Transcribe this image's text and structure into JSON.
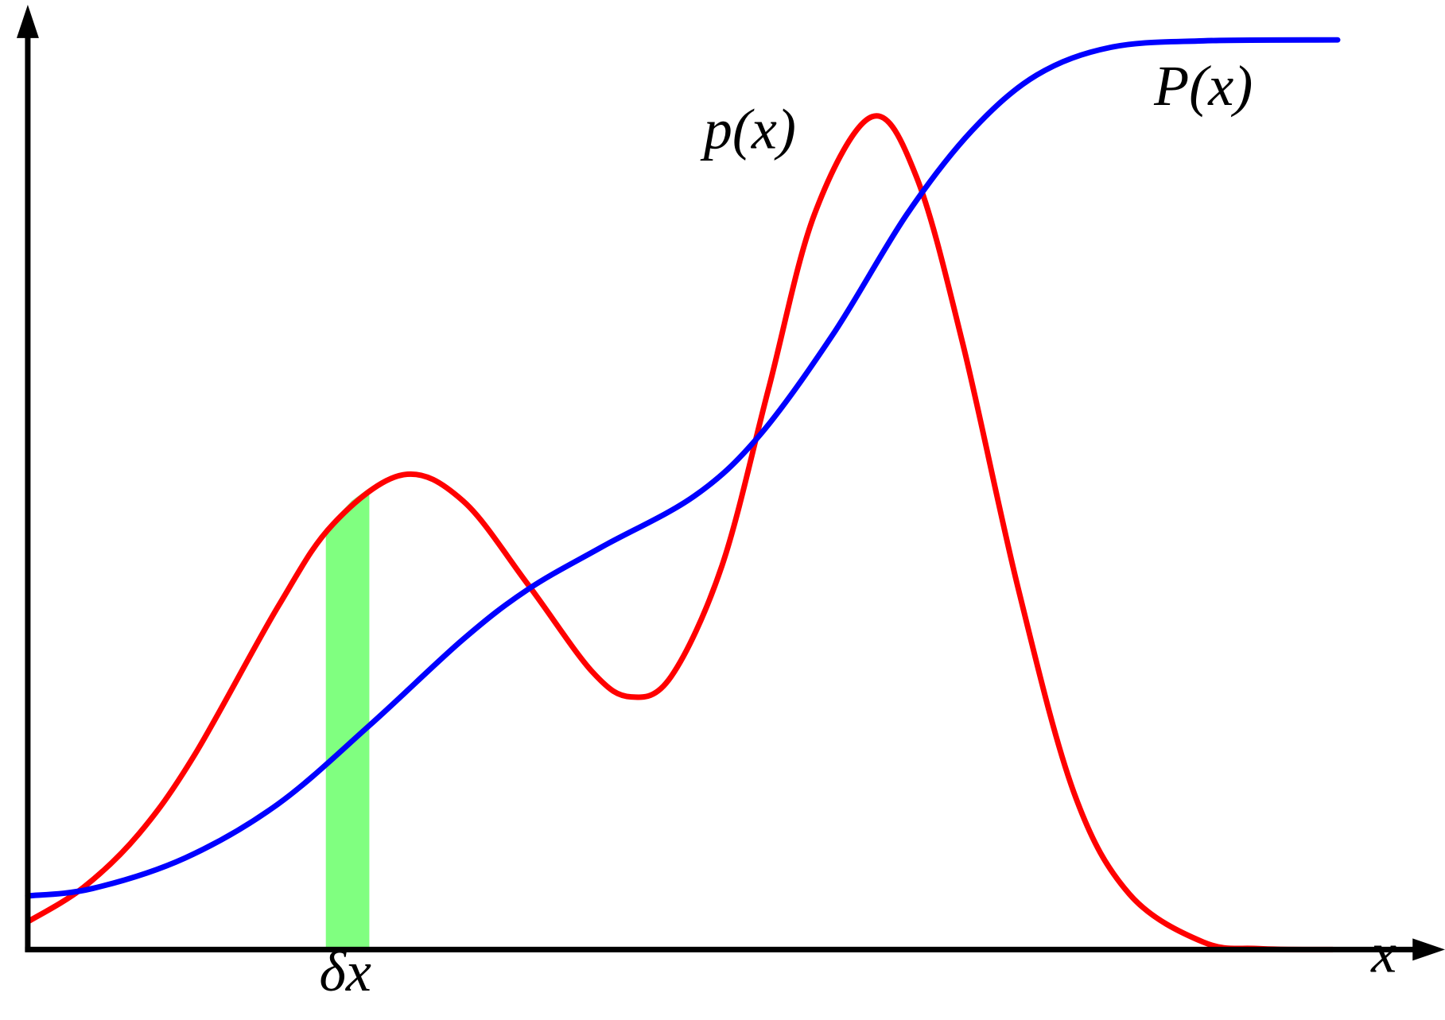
{
  "labels": {
    "density": "p(x)",
    "cumulative": "P(x)",
    "interval": "δx",
    "x_axis": "x"
  }
}
